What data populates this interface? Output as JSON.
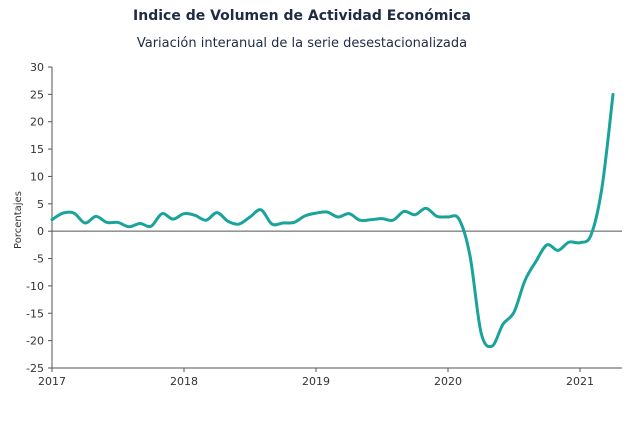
{
  "chart_data": {
    "type": "line",
    "title": "Indice de Volumen de  Actividad Económica",
    "subtitle": "Variación interanual de la serie desestacionalizada",
    "xlabel": "",
    "ylabel": "Porcentajes",
    "x_ticks": [
      "2017",
      "2018",
      "2019",
      "2020",
      "2021"
    ],
    "y_ticks": [
      30,
      25,
      20,
      15,
      10,
      5,
      0,
      -5,
      -10,
      -15,
      -20,
      -25
    ],
    "ylim": [
      -25,
      30
    ],
    "xlim": [
      "2017-01",
      "2021-04"
    ],
    "grid": false,
    "series_color": "#1aa39a",
    "x": [
      "2017-01",
      "2017-02",
      "2017-03",
      "2017-04",
      "2017-05",
      "2017-06",
      "2017-07",
      "2017-08",
      "2017-09",
      "2017-10",
      "2017-11",
      "2017-12",
      "2018-01",
      "2018-02",
      "2018-03",
      "2018-04",
      "2018-05",
      "2018-06",
      "2018-07",
      "2018-08",
      "2018-09",
      "2018-10",
      "2018-11",
      "2018-12",
      "2019-01",
      "2019-02",
      "2019-03",
      "2019-04",
      "2019-05",
      "2019-06",
      "2019-07",
      "2019-08",
      "2019-09",
      "2019-10",
      "2019-11",
      "2019-12",
      "2020-01",
      "2020-02",
      "2020-03",
      "2020-04",
      "2020-05",
      "2020-06",
      "2020-07",
      "2020-08",
      "2020-09",
      "2020-10",
      "2020-11",
      "2020-12",
      "2021-01",
      "2021-02",
      "2021-03",
      "2021-04"
    ],
    "series": [
      {
        "values": [
          2.1,
          3.3,
          3.3,
          1.5,
          2.7,
          1.6,
          1.6,
          0.8,
          1.4,
          0.9,
          3.2,
          2.2,
          3.2,
          2.9,
          2.0,
          3.4,
          1.8,
          1.3,
          2.6,
          3.9,
          1.3,
          1.5,
          1.6,
          2.8,
          3.3,
          3.5,
          2.6,
          3.2,
          2.0,
          2.1,
          2.3,
          2.0,
          3.6,
          3.0,
          4.2,
          2.7,
          2.6,
          2.2,
          -4.5,
          -18.5,
          -21.0,
          -17.0,
          -14.8,
          -9.0,
          -5.5,
          -2.5,
          -3.5,
          -2.0,
          -2.1,
          -0.7,
          8.0,
          25.0
        ]
      }
    ]
  }
}
